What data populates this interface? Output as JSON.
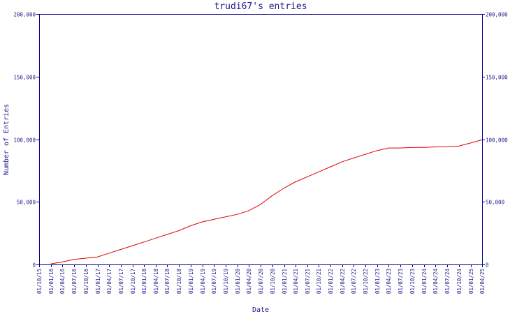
{
  "chart_data": {
    "type": "line",
    "title": "trudi67's entries",
    "xlabel": "Date",
    "ylabel": "Number of Entries",
    "ylim": [
      0,
      200000
    ],
    "yticks": [
      0,
      50000,
      100000,
      150000,
      200000
    ],
    "ytick_labels": [
      "0",
      "50,000",
      "100,000",
      "150,000",
      "200,000"
    ],
    "xticks": [
      "01/10/15",
      "01/01/16",
      "01/04/16",
      "01/07/16",
      "01/10/16",
      "01/01/17",
      "01/04/17",
      "01/07/17",
      "01/10/17",
      "01/01/18",
      "01/04/18",
      "01/07/18",
      "01/10/18",
      "01/01/19",
      "01/04/19",
      "01/07/19",
      "01/10/19",
      "01/01/20",
      "01/04/20",
      "01/07/20",
      "01/10/20",
      "01/01/21",
      "01/04/21",
      "01/07/21",
      "01/10/21",
      "01/01/22",
      "01/04/22",
      "01/07/22",
      "01/10/22",
      "01/01/23",
      "01/04/23",
      "01/07/23",
      "01/10/23",
      "01/01/24",
      "01/04/24",
      "01/07/24",
      "01/10/24",
      "01/01/25",
      "01/04/25"
    ],
    "grid": false,
    "colors": {
      "axis": "#00008b",
      "text": "#1b1b8a",
      "series": "#e00000"
    },
    "series": [
      {
        "x": [
          "01/01/16",
          "01/04/16",
          "01/07/16",
          "01/10/16",
          "01/01/17",
          "01/04/17",
          "01/07/17",
          "01/10/17",
          "01/01/18",
          "01/04/18",
          "01/07/18",
          "01/10/18",
          "01/01/19",
          "01/04/19",
          "01/07/19",
          "01/10/19",
          "01/01/20",
          "01/04/20",
          "01/07/20",
          "01/10/20",
          "01/01/21",
          "01/04/21",
          "01/07/21",
          "01/10/21",
          "01/01/22",
          "01/04/22",
          "01/07/22",
          "01/10/22",
          "01/01/23",
          "01/04/23",
          "01/07/23",
          "01/10/23",
          "01/01/24",
          "01/04/24",
          "01/07/24",
          "01/10/24",
          "01/01/25",
          "01/04/25"
        ],
        "y": [
          500,
          2000,
          4000,
          5000,
          6000,
          9000,
          12000,
          15000,
          18000,
          21000,
          24000,
          27000,
          31000,
          34000,
          36000,
          38000,
          40000,
          43000,
          48000,
          55000,
          61000,
          66000,
          70000,
          74000,
          78000,
          82000,
          85000,
          88000,
          91000,
          93000,
          93000,
          93500,
          93500,
          93800,
          94000,
          94500,
          97000,
          99500
        ]
      }
    ]
  }
}
